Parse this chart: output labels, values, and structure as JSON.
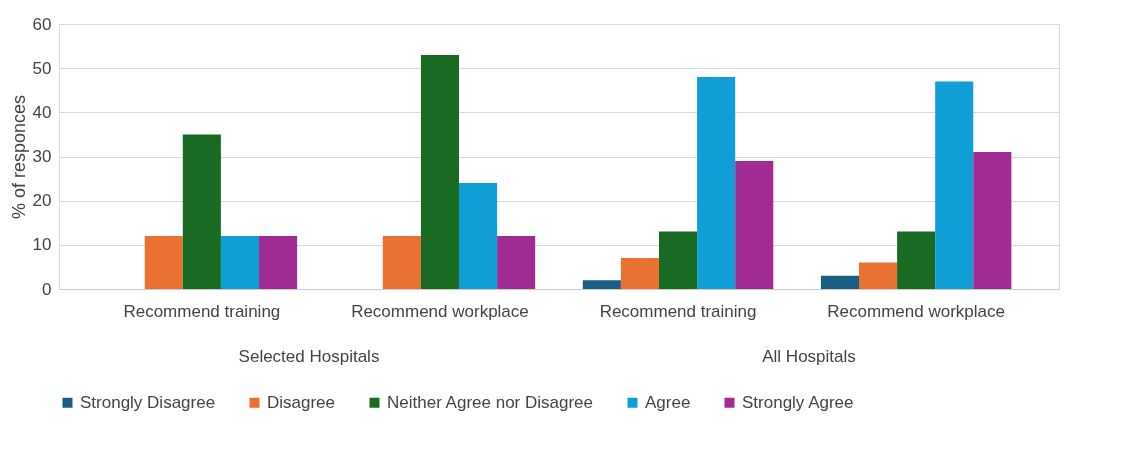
{
  "chart_data": {
    "type": "bar",
    "ylabel": "% of responces",
    "categories": [
      "Recommend training",
      "Recommend workplace",
      "Recommend training",
      "Recommend workplace"
    ],
    "series": [
      {
        "name": "Strongly Disagree",
        "color": "#1b5e83",
        "values": [
          null,
          null,
          2,
          3
        ]
      },
      {
        "name": "Disagree",
        "color": "#e97132",
        "values": [
          12,
          12,
          7,
          6
        ]
      },
      {
        "name": "Neither Agree nor Disagree",
        "color": "#196b24",
        "values": [
          35,
          53,
          13,
          13
        ]
      },
      {
        "name": "Agree",
        "color": "#0f9ed5",
        "values": [
          12,
          24,
          48,
          47
        ]
      },
      {
        "name": "Strongly Agree",
        "color": "#a02b93",
        "values": [
          12,
          12,
          29,
          31
        ]
      }
    ],
    "annotations": [
      "Selected Hospitals",
      "All Hospitals"
    ],
    "ylim": [
      0,
      60
    ],
    "yticks": [
      0,
      10,
      20,
      30,
      40,
      50,
      60
    ],
    "grid": "y",
    "legend": "bottom"
  }
}
